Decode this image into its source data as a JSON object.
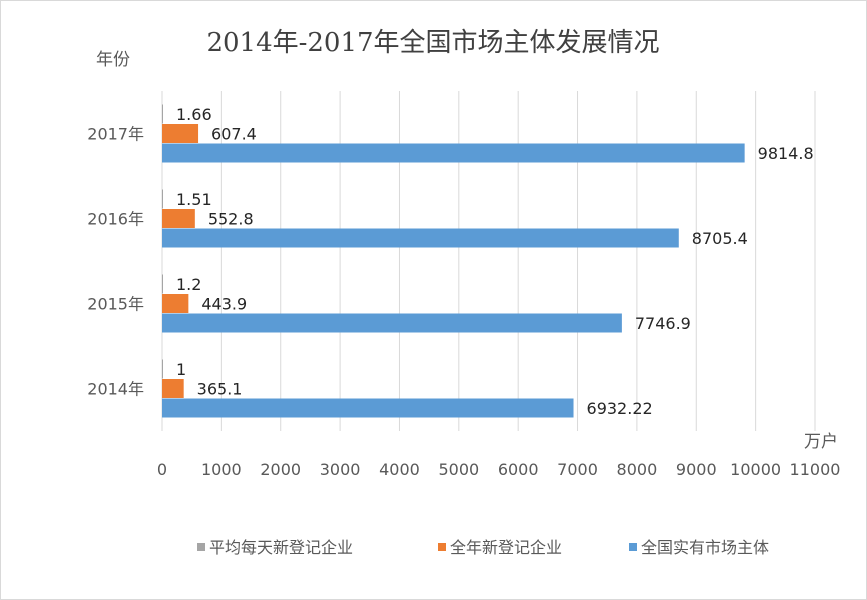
{
  "chart_data": {
    "type": "bar",
    "orientation": "horizontal",
    "title": "2014年-2017年全国市场主体发展情况",
    "ylabel": "年份",
    "xlabel": "万户",
    "categories": [
      "2014年",
      "2015年",
      "2016年",
      "2017年"
    ],
    "xlim": [
      0,
      11000
    ],
    "xticks": [
      0,
      1000,
      2000,
      3000,
      4000,
      5000,
      6000,
      7000,
      8000,
      9000,
      10000,
      11000
    ],
    "grid": true,
    "legend_position": "bottom",
    "series": [
      {
        "name": "平均每天新登记企业",
        "color": "#a5a5a5",
        "values": [
          1,
          1.2,
          1.51,
          1.66
        ],
        "labels": [
          "1",
          "1.2",
          "1.51",
          "1.66"
        ]
      },
      {
        "name": "全年新登记企业",
        "color": "#ed7d31",
        "values": [
          365.1,
          443.9,
          552.8,
          607.4
        ],
        "labels": [
          "365.1",
          "443.9",
          "552.8",
          "607.4"
        ]
      },
      {
        "name": "全国实有市场主体",
        "color": "#5b9bd5",
        "values": [
          6932.22,
          7746.9,
          8705.4,
          9814.8
        ],
        "labels": [
          "6932.22",
          "7746.9",
          "8705.4",
          "9814.8"
        ]
      }
    ]
  }
}
